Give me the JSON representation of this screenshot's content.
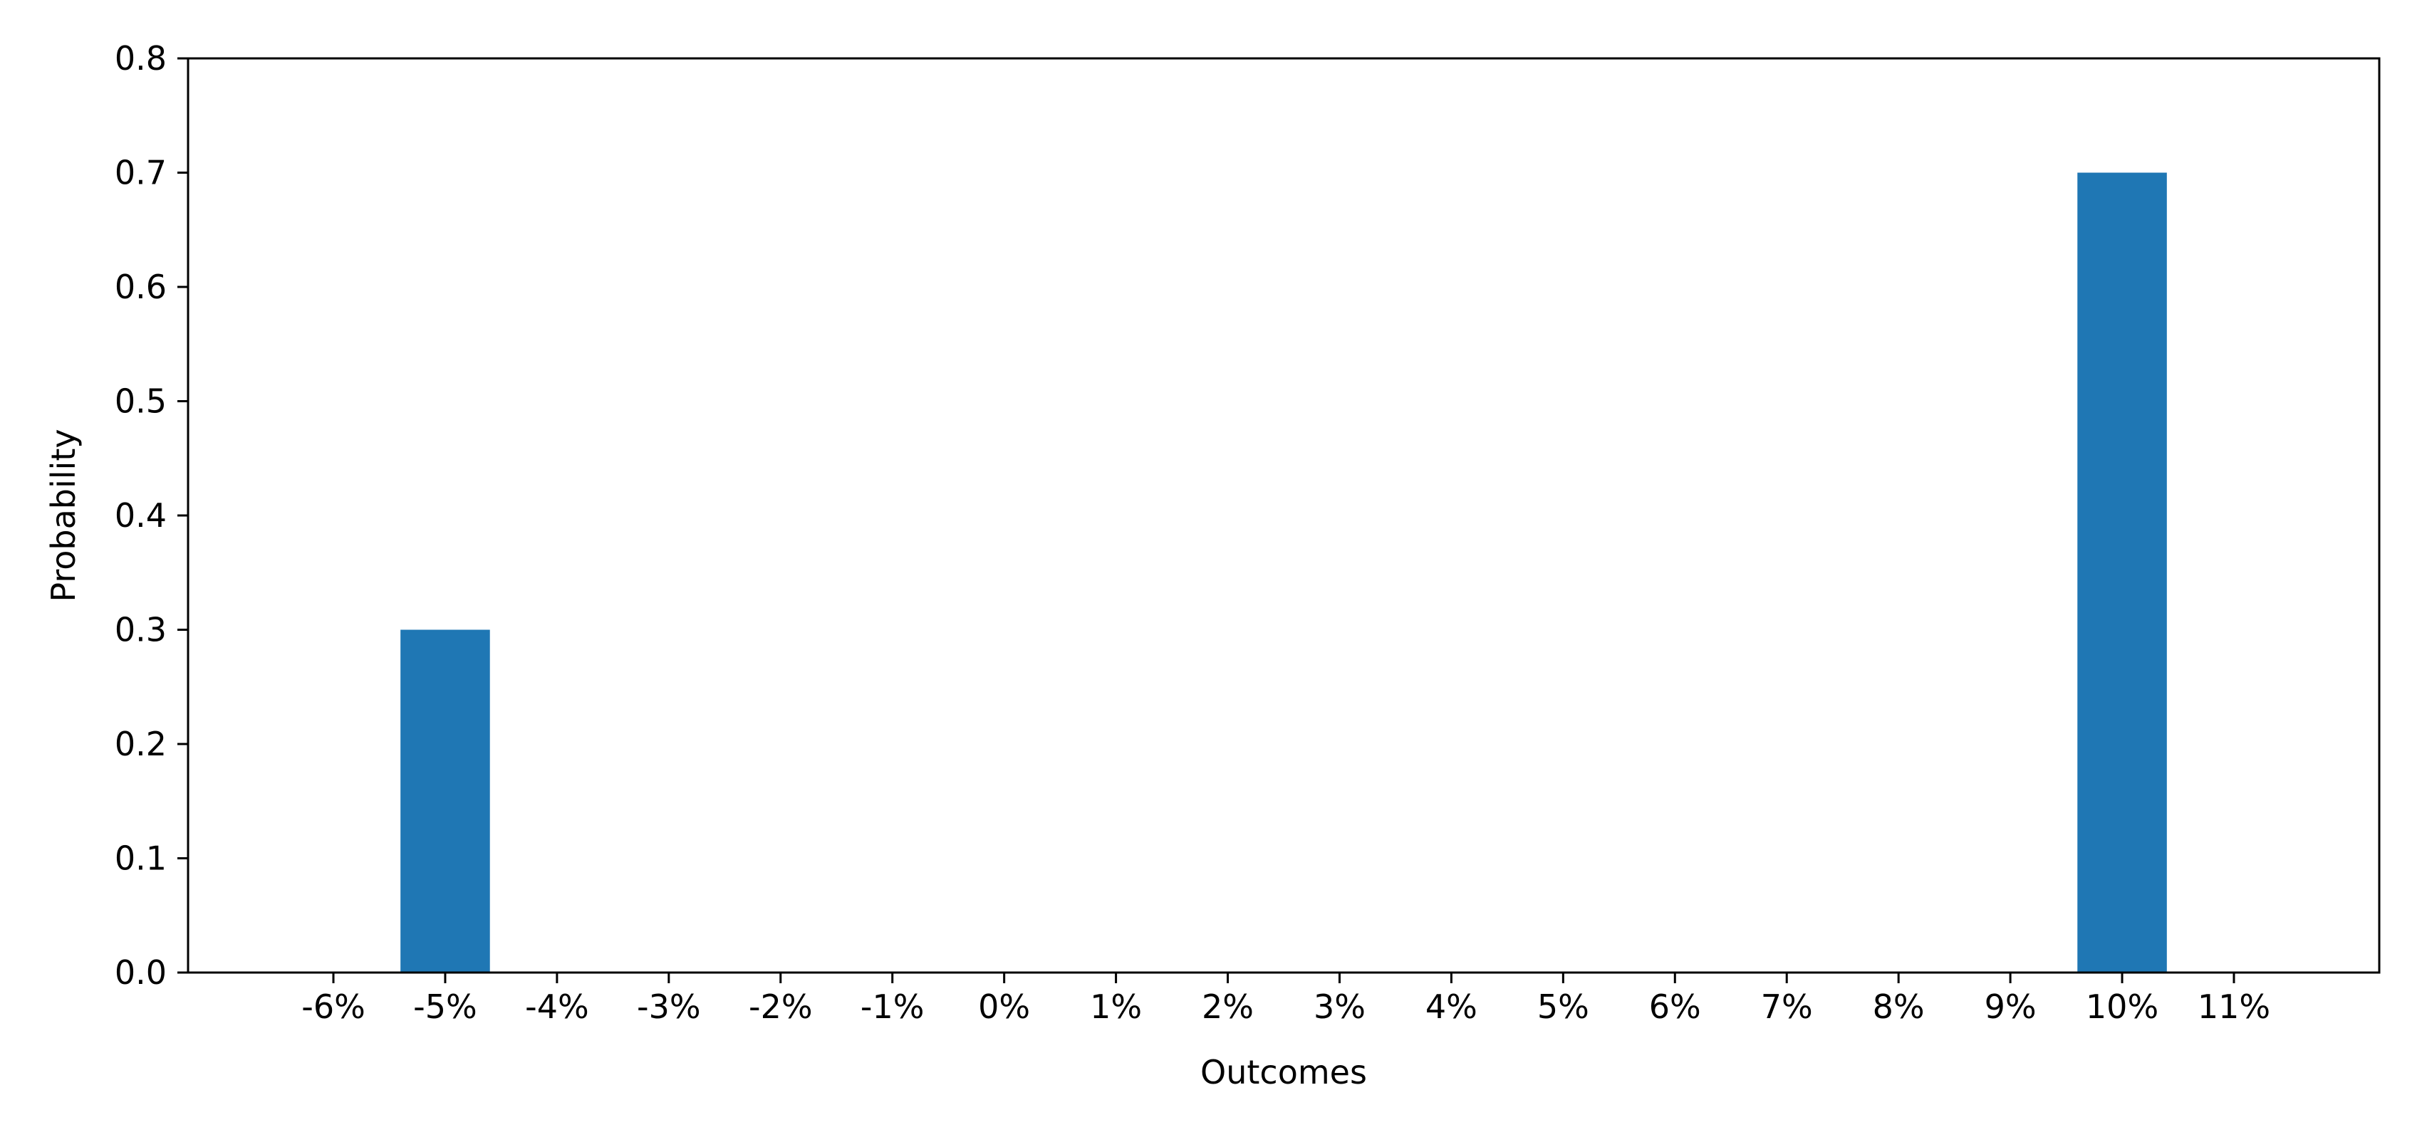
{
  "chart_data": {
    "type": "bar",
    "title": "",
    "xlabel": "Outcomes",
    "ylabel": "Probability",
    "categories": [
      "-6%",
      "-5%",
      "-4%",
      "-3%",
      "-2%",
      "-1%",
      "0%",
      "1%",
      "2%",
      "3%",
      "4%",
      "5%",
      "6%",
      "7%",
      "8%",
      "9%",
      "10%",
      "11%"
    ],
    "x_values": [
      -6,
      -5,
      -4,
      -3,
      -2,
      -1,
      0,
      1,
      2,
      3,
      4,
      5,
      6,
      7,
      8,
      9,
      10,
      11
    ],
    "values": [
      0,
      0.3,
      0,
      0,
      0,
      0,
      0,
      0,
      0,
      0,
      0,
      0,
      0,
      0,
      0,
      0,
      0.7,
      0
    ],
    "xlim": [
      -7.3,
      12.3
    ],
    "ylim": [
      0,
      0.8
    ],
    "yticks": [
      0.0,
      0.1,
      0.2,
      0.3,
      0.4,
      0.5,
      0.6,
      0.7,
      0.8
    ],
    "ytick_labels": [
      "0.0",
      "0.1",
      "0.2",
      "0.3",
      "0.4",
      "0.5",
      "0.6",
      "0.7",
      "0.8"
    ],
    "bar_width": 0.8,
    "grid": false,
    "legend": "none",
    "bar_color": "#1f77b4"
  }
}
